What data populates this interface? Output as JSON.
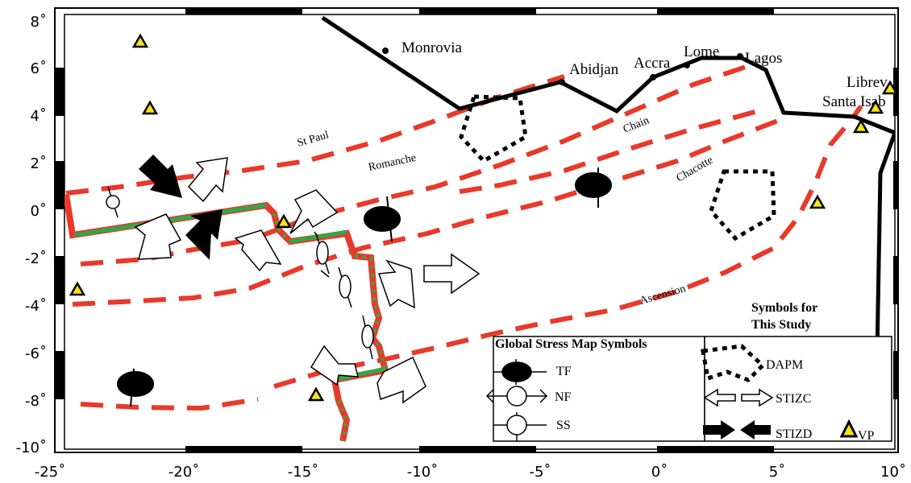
{
  "axes": {
    "x_ticks": [
      "-25˚",
      "-20˚",
      "-15˚",
      "-10˚",
      "-5˚",
      "0˚",
      "5˚",
      "10˚"
    ],
    "y_ticks": [
      "8˚",
      "6˚",
      "4˚",
      "2˚",
      "0˚",
      "-2˚",
      "-4˚",
      "-6˚",
      "-8˚",
      "-10˚"
    ],
    "x_range": [
      -25,
      10
    ],
    "y_range": [
      -10.5,
      8.5
    ]
  },
  "places": {
    "monrovia": "Monrovia",
    "abidjan": "Abidjan",
    "accra": "Accra",
    "lome": "Lome",
    "lagos": "Lagos",
    "libreville": "Librev",
    "santa_isabel": "Santa Isab"
  },
  "fracture_zones": {
    "st_paul": "St Paul",
    "romanche": "Romanche",
    "chain": "Chain",
    "chacotte": "Chacotte",
    "ascension": "Ascension"
  },
  "legend": {
    "gsm_title": "Global Stress Map  Symbols",
    "study_title_1": "Symbols for",
    "study_title_2": "This Study",
    "tf": "TF",
    "nf": "NF",
    "ss": "SS",
    "dapm": "DAPM",
    "stizc": "STIZC",
    "stizd": "STIZD",
    "vp": "VP"
  },
  "colors": {
    "fracture_zone": "#e8392a",
    "ridge": "#2fa84a",
    "coastline": "#000000",
    "volcano_fill": "#f5e313"
  },
  "icons": {
    "volcano": "triangle-icon",
    "thrust_focal": "filled-ellipse-icon",
    "normal_focal": "open-circle-icon",
    "compression": "solid-arrow-icon",
    "extension": "hollow-arrow-icon"
  }
}
